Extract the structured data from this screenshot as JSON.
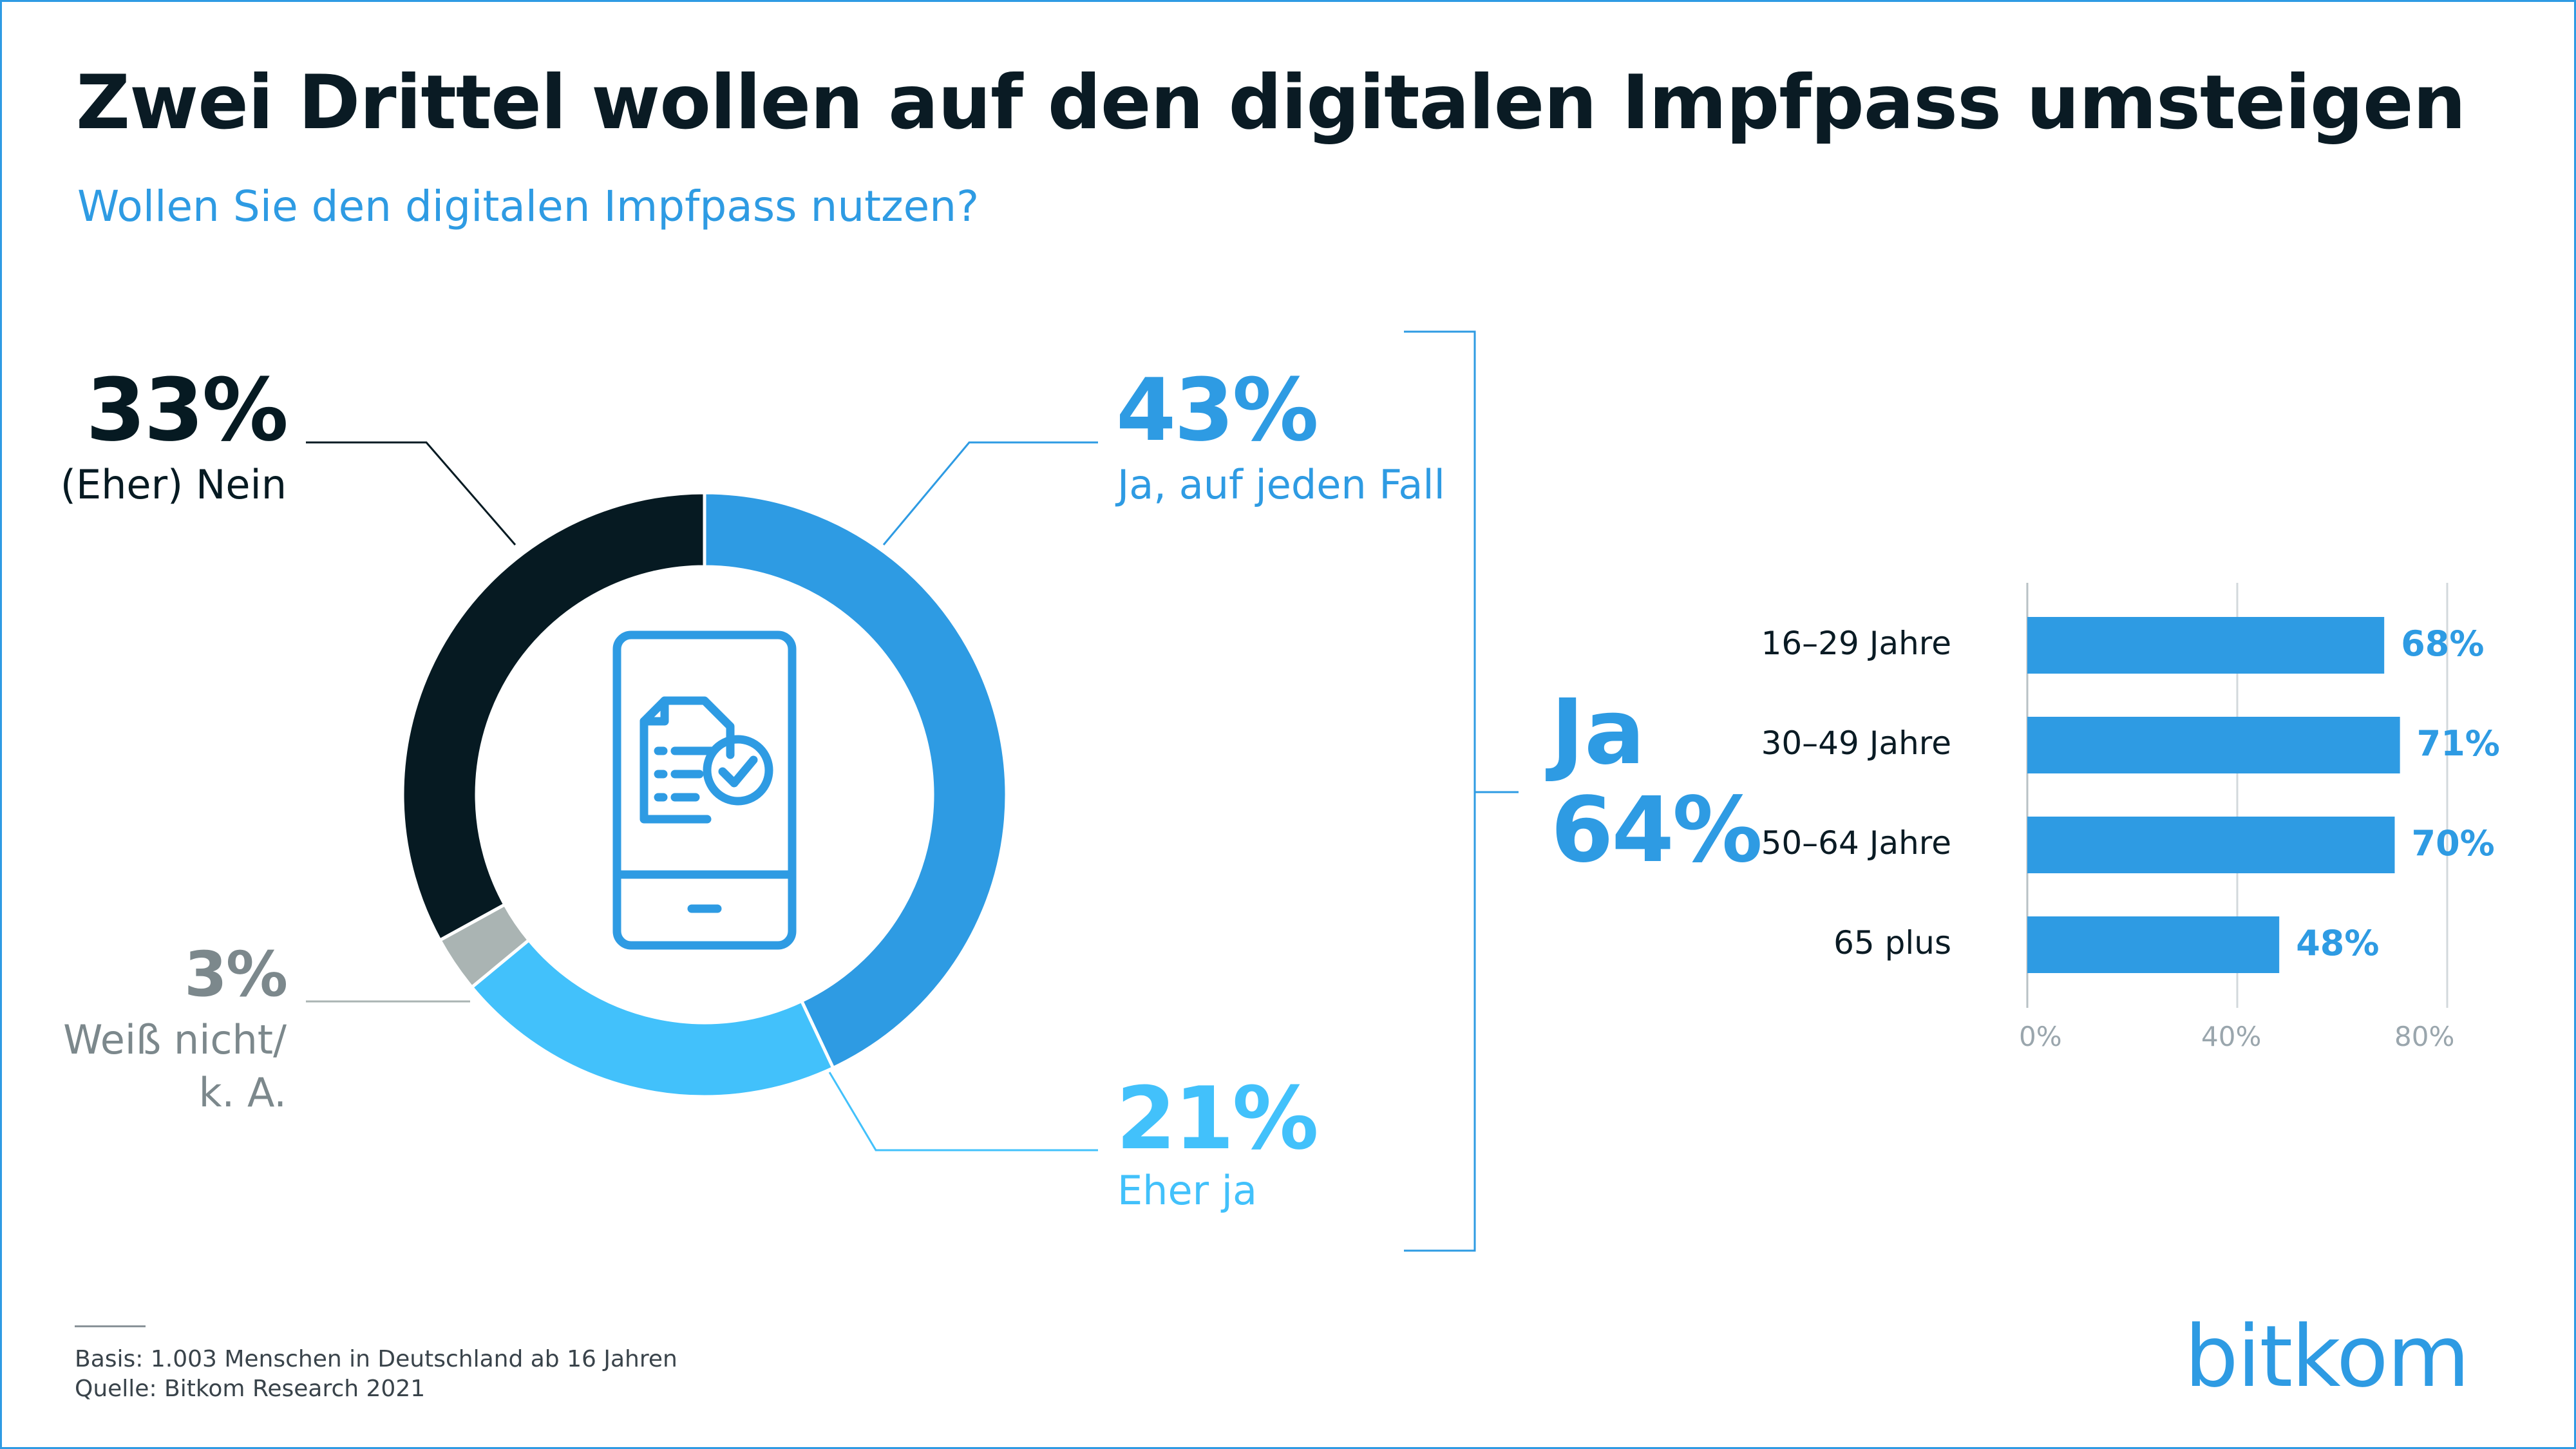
{
  "header": {
    "title": "Zwei Drittel wollen auf den digitalen Impfpass umsteigen",
    "subtitle": "Wollen Sie den digitalen Impfpass nutzen?"
  },
  "chart_data": [
    {
      "type": "pie",
      "donut": true,
      "title": "",
      "slices": [
        {
          "label": "Ja, auf jeden Fall",
          "value": 43,
          "display": "43%",
          "color": "#2e9be3"
        },
        {
          "label": "Eher ja",
          "value": 21,
          "display": "21%",
          "color": "#42c1fb"
        },
        {
          "label": "Weiß nicht/ k. A.",
          "label_line1": "Weiß nicht/",
          "label_line2": "k. A.",
          "value": 3,
          "display": "3%",
          "color": "#aab4b3"
        },
        {
          "label": "(Eher) Nein",
          "value": 33,
          "display": "33%",
          "color": "#061a22"
        }
      ],
      "center_icon": "smartphone-document-check-icon",
      "summary": {
        "label": "Ja",
        "value": 64,
        "display": "64%"
      }
    },
    {
      "type": "bar",
      "orientation": "horizontal",
      "categories": [
        "16–29 Jahre",
        "30–49 Jahre",
        "50–64 Jahre",
        "65 plus"
      ],
      "values": [
        68,
        71,
        70,
        48
      ],
      "value_labels": [
        "68%",
        "71%",
        "70%",
        "48%"
      ],
      "xlim": [
        0,
        80
      ],
      "xticks": [
        0,
        40,
        80
      ],
      "xtick_labels": [
        "0%",
        "40%",
        "80%"
      ],
      "grid": true,
      "color": "#2e9be3"
    }
  ],
  "footer": {
    "basis": "Basis: 1.003 Menschen  in Deutschland ab 16 Jahren",
    "source": "Quelle: Bitkom Research 2021",
    "logo": "bitkom"
  },
  "colors": {
    "accent": "#2e9be3",
    "light_blue": "#42c1fb",
    "dark": "#061a22",
    "grey": "#aab4b3",
    "label_grey": "#7c888c"
  }
}
